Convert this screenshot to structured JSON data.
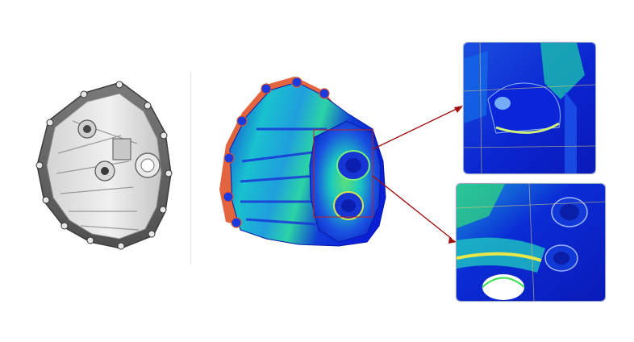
{
  "scene": {
    "kind": "fea-stress-result-comparison",
    "panels": [
      {
        "name": "cad-model",
        "shading": "gray"
      },
      {
        "name": "fea-contour-model",
        "shading": "rainbow-contour"
      },
      {
        "name": "zoom-detail-top",
        "shading": "rainbow-contour"
      },
      {
        "name": "zoom-detail-bottom",
        "shading": "rainbow-contour"
      }
    ]
  },
  "colors": {
    "background": "#ffffff",
    "contour_low": "#0a1fd6",
    "contour_mid": "#19c8c8",
    "contour_high": "#2fe04a",
    "contour_peak": "#e6e84a",
    "flange_hot": "#e0542a",
    "cad_gray": "#b8b8b8",
    "cad_dark": "#606060",
    "callout_line": "#a01010",
    "callout_box": "#c02020"
  }
}
